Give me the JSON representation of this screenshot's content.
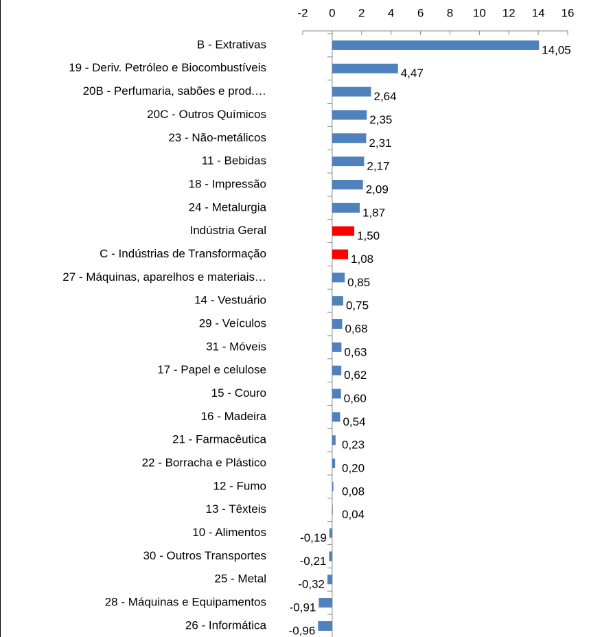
{
  "chart_data": {
    "type": "bar",
    "orientation": "horizontal",
    "categories": [
      "B - Extrativas",
      "19 - Deriv. Petróleo e Biocombustíveis",
      "20B - Perfumaria, sabões e prod.…",
      "20C - Outros Químicos",
      "23 - Não-metálicos",
      "11 - Bebidas",
      "18 - Impressão",
      "24 - Metalurgia",
      "Indústria Geral",
      "C - Indústrias de Transformação",
      "27 - Máquinas, aparelhos e materiais…",
      "14 - Vestuário",
      "29 - Veículos",
      "31 - Móveis",
      "17 - Papel e celulose",
      "15 - Couro",
      "16 - Madeira",
      "21 - Farmacêutica",
      "22 - Borracha e Plástico",
      "12 - Fumo",
      "13 - Têxteis",
      "10 - Alimentos",
      "30 - Outros Transportes",
      "25 - Metal",
      "28 - Máquinas e Equipamentos",
      "26 - Informática"
    ],
    "values": [
      14.05,
      4.47,
      2.64,
      2.35,
      2.31,
      2.17,
      2.09,
      1.87,
      1.5,
      1.08,
      0.85,
      0.75,
      0.68,
      0.63,
      0.62,
      0.6,
      0.54,
      0.23,
      0.2,
      0.08,
      0.04,
      -0.19,
      -0.21,
      -0.32,
      -0.91,
      -0.96
    ],
    "value_labels": [
      "14,05",
      "4,47",
      "2,64",
      "2,35",
      "2,31",
      "2,17",
      "2,09",
      "1,87",
      "1,50",
      "1,08",
      "0,85",
      "0,75",
      "0,68",
      "0,63",
      "0,62",
      "0,60",
      "0,54",
      "0,23",
      "0,20",
      "0,08",
      "0,04",
      "-0,19",
      "-0,21",
      "-0,32",
      "-0,91",
      "-0,96"
    ],
    "colors": [
      "#4f81bd",
      "#4f81bd",
      "#4f81bd",
      "#4f81bd",
      "#4f81bd",
      "#4f81bd",
      "#4f81bd",
      "#4f81bd",
      "#ff0000",
      "#ff0000",
      "#4f81bd",
      "#4f81bd",
      "#4f81bd",
      "#4f81bd",
      "#4f81bd",
      "#4f81bd",
      "#4f81bd",
      "#4f81bd",
      "#4f81bd",
      "#4f81bd",
      "#4f81bd",
      "#4f81bd",
      "#4f81bd",
      "#4f81bd",
      "#4f81bd",
      "#4f81bd"
    ],
    "xlim": [
      -2,
      16
    ],
    "xticks": [
      -2,
      0,
      2,
      4,
      6,
      8,
      10,
      12,
      14,
      16
    ],
    "axis_position": "top"
  }
}
